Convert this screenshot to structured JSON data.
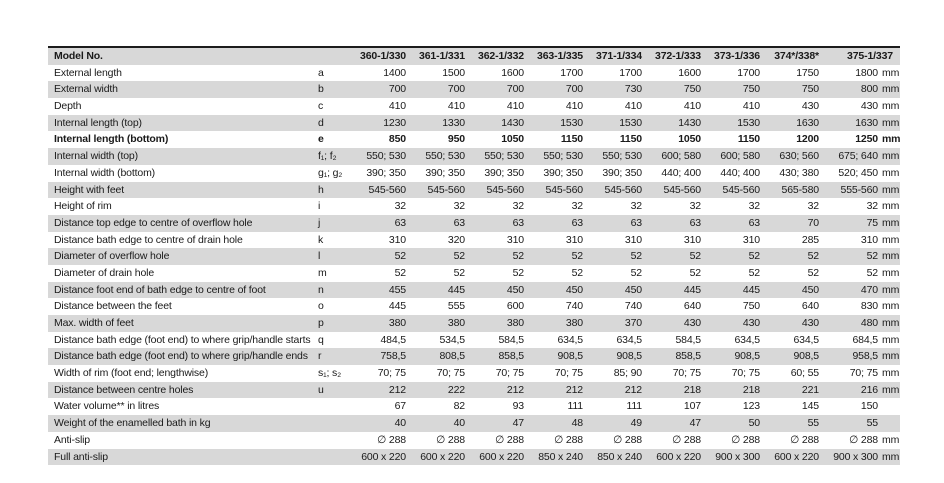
{
  "table": {
    "header": {
      "label": "Model No.",
      "models": [
        "360-1/330",
        "361-1/331",
        "362-1/332",
        "363-1/335",
        "371-1/334",
        "372-1/333",
        "373-1/336",
        "374*/338*",
        "375-1/337"
      ]
    },
    "rows": [
      {
        "label": "External length",
        "key": "a",
        "values": [
          "1400",
          "1500",
          "1600",
          "1700",
          "1700",
          "1600",
          "1700",
          "1750",
          "1800"
        ],
        "unit": "mm",
        "bold": false
      },
      {
        "label": "External width",
        "key": "b",
        "values": [
          "700",
          "700",
          "700",
          "700",
          "730",
          "750",
          "750",
          "750",
          "800"
        ],
        "unit": "mm",
        "bold": false
      },
      {
        "label": "Depth",
        "key": "c",
        "values": [
          "410",
          "410",
          "410",
          "410",
          "410",
          "410",
          "410",
          "430",
          "430"
        ],
        "unit": "mm",
        "bold": false
      },
      {
        "label": "Internal length (top)",
        "key": "d",
        "values": [
          "1230",
          "1330",
          "1430",
          "1530",
          "1530",
          "1430",
          "1530",
          "1630",
          "1630"
        ],
        "unit": "mm",
        "bold": false
      },
      {
        "label": "Internal length (bottom)",
        "key": "e",
        "values": [
          "850",
          "950",
          "1050",
          "1150",
          "1150",
          "1050",
          "1150",
          "1200",
          "1250"
        ],
        "unit": "mm",
        "bold": true
      },
      {
        "label": "Internal width (top)",
        "key": "f₁; f₂",
        "values": [
          "550; 530",
          "550; 530",
          "550; 530",
          "550; 530",
          "550; 530",
          "600; 580",
          "600; 580",
          "630; 560",
          "675; 640"
        ],
        "unit": "mm",
        "bold": false
      },
      {
        "label": "Internal width (bottom)",
        "key": "g₁; g₂",
        "values": [
          "390; 350",
          "390; 350",
          "390; 350",
          "390; 350",
          "390; 350",
          "440; 400",
          "440; 400",
          "430; 380",
          "520; 450"
        ],
        "unit": "mm",
        "bold": false
      },
      {
        "label": "Height with feet",
        "key": "h",
        "values": [
          "545-560",
          "545-560",
          "545-560",
          "545-560",
          "545-560",
          "545-560",
          "545-560",
          "565-580",
          "555-560"
        ],
        "unit": "mm",
        "bold": false
      },
      {
        "label": "Height of rim",
        "key": "i",
        "values": [
          "32",
          "32",
          "32",
          "32",
          "32",
          "32",
          "32",
          "32",
          "32"
        ],
        "unit": "mm",
        "bold": false
      },
      {
        "label": "Distance top edge to centre of overflow hole",
        "key": "j",
        "values": [
          "63",
          "63",
          "63",
          "63",
          "63",
          "63",
          "63",
          "70",
          "75"
        ],
        "unit": "mm",
        "bold": false
      },
      {
        "label": "Distance bath edge to centre of drain hole",
        "key": "k",
        "values": [
          "310",
          "320",
          "310",
          "310",
          "310",
          "310",
          "310",
          "285",
          "310"
        ],
        "unit": "mm",
        "bold": false
      },
      {
        "label": "Diameter of overflow hole",
        "key": "l",
        "values": [
          "52",
          "52",
          "52",
          "52",
          "52",
          "52",
          "52",
          "52",
          "52"
        ],
        "unit": "mm",
        "bold": false
      },
      {
        "label": "Diameter of drain hole",
        "key": "m",
        "values": [
          "52",
          "52",
          "52",
          "52",
          "52",
          "52",
          "52",
          "52",
          "52"
        ],
        "unit": "mm",
        "bold": false
      },
      {
        "label": "Distance foot end of bath edge to centre of foot",
        "key": "n",
        "values": [
          "455",
          "445",
          "450",
          "450",
          "450",
          "445",
          "445",
          "450",
          "470"
        ],
        "unit": "mm",
        "bold": false
      },
      {
        "label": "Distance between the feet",
        "key": "o",
        "values": [
          "445",
          "555",
          "600",
          "740",
          "740",
          "640",
          "750",
          "640",
          "830"
        ],
        "unit": "mm",
        "bold": false
      },
      {
        "label": "Max. width of feet",
        "key": "p",
        "values": [
          "380",
          "380",
          "380",
          "380",
          "370",
          "430",
          "430",
          "430",
          "480"
        ],
        "unit": "mm",
        "bold": false
      },
      {
        "label": "Distance bath edge (foot end) to where grip/handle starts",
        "key": "q",
        "values": [
          "484,5",
          "534,5",
          "584,5",
          "634,5",
          "634,5",
          "584,5",
          "634,5",
          "634,5",
          "684,5"
        ],
        "unit": "mm",
        "bold": false
      },
      {
        "label": "Distance bath edge (foot end) to where grip/handle ends",
        "key": "r",
        "values": [
          "758,5",
          "808,5",
          "858,5",
          "908,5",
          "908,5",
          "858,5",
          "908,5",
          "908,5",
          "958,5"
        ],
        "unit": "mm",
        "bold": false
      },
      {
        "label": "Width of rim (foot end; lengthwise)",
        "key": "s₁; s₂",
        "values": [
          "70; 75",
          "70; 75",
          "70; 75",
          "70; 75",
          "85; 90",
          "70; 75",
          "70; 75",
          "60; 55",
          "70; 75"
        ],
        "unit": "mm",
        "bold": false
      },
      {
        "label": "Distance between centre holes",
        "key": "u",
        "values": [
          "212",
          "222",
          "212",
          "212",
          "212",
          "218",
          "218",
          "221",
          "216"
        ],
        "unit": "mm",
        "bold": false
      },
      {
        "label": "Water volume** in litres",
        "key": "",
        "values": [
          "67",
          "82",
          "93",
          "111",
          "111",
          "107",
          "123",
          "145",
          "150"
        ],
        "unit": "",
        "bold": false
      },
      {
        "label": "Weight of the enamelled bath in kg",
        "key": "",
        "values": [
          "40",
          "40",
          "47",
          "48",
          "49",
          "47",
          "50",
          "55",
          "55"
        ],
        "unit": "",
        "bold": false
      },
      {
        "label": "Anti-slip",
        "key": "",
        "values": [
          "∅ 288",
          "∅ 288",
          "∅ 288",
          "∅ 288",
          "∅ 288",
          "∅ 288",
          "∅ 288",
          "∅ 288",
          "∅ 288"
        ],
        "unit": "mm",
        "bold": false
      },
      {
        "label": "Full anti-slip",
        "key": "",
        "values": [
          "600 x 220",
          "600 x 220",
          "600 x 220",
          "850 x 240",
          "850 x 240",
          "600 x 220",
          "900 x 300",
          "600 x 220",
          "900 x 300"
        ],
        "unit": "mm",
        "bold": false
      }
    ]
  }
}
